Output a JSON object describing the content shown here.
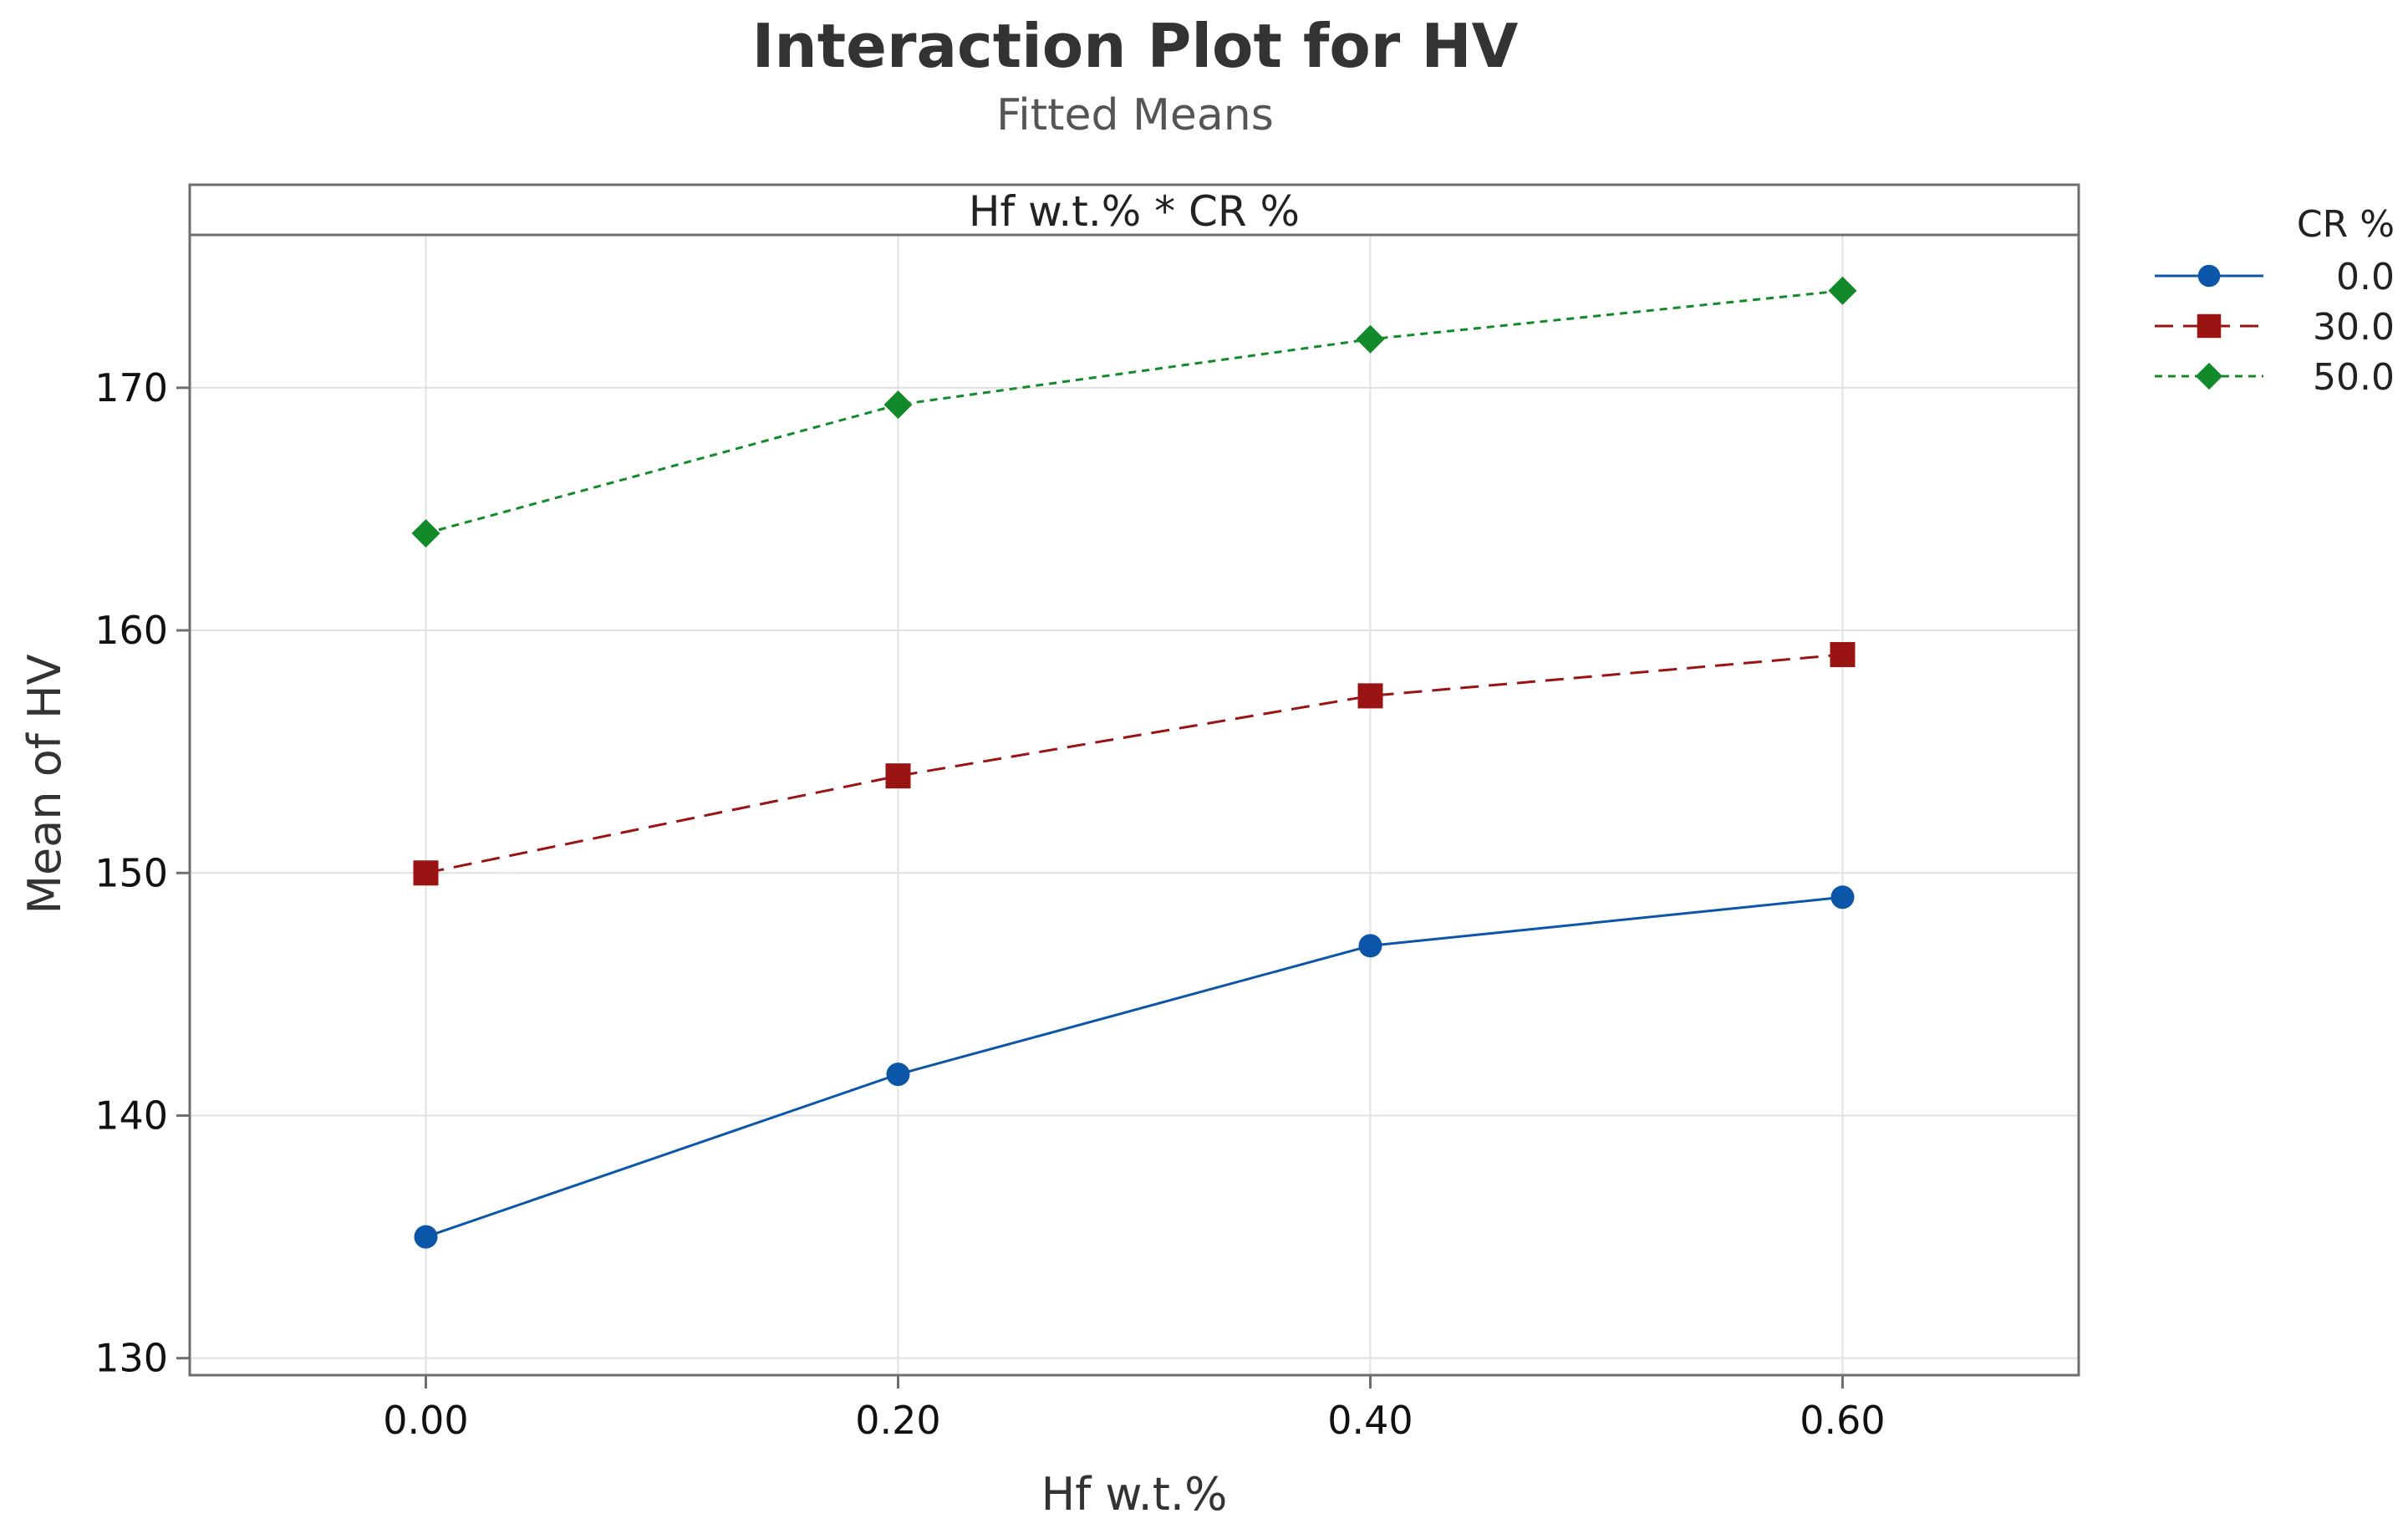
{
  "chart_data": {
    "type": "line",
    "title": "Interaction Plot for HV",
    "subtitle": "Fitted Means",
    "panel_label": "Hf w.t.% * CR %",
    "xlabel": "Hf w.t.%",
    "ylabel": "Mean of HV",
    "x": [
      0.0,
      0.2,
      0.4,
      0.6
    ],
    "x_tick_labels": [
      "0.00",
      "0.20",
      "0.40",
      "0.60"
    ],
    "xlim": [
      -0.1,
      0.7
    ],
    "y_ticks": [
      130,
      140,
      150,
      160,
      170
    ],
    "ylim": [
      129.3,
      176.3
    ],
    "grid": true,
    "legend_title": "CR %",
    "legend_position": "right",
    "series": [
      {
        "name": "0.0",
        "values": [
          135.0,
          141.7,
          147.0,
          149.0
        ],
        "color": "#0b56a8",
        "marker": "circle",
        "dash": "solid"
      },
      {
        "name": "30.0",
        "values": [
          150.0,
          154.0,
          157.3,
          159.0
        ],
        "color": "#9b1414",
        "marker": "square",
        "dash": "dashed"
      },
      {
        "name": "50.0",
        "values": [
          164.0,
          169.3,
          172.0,
          174.0
        ],
        "color": "#138a2a",
        "marker": "diamond",
        "dash": "dotted"
      }
    ]
  }
}
